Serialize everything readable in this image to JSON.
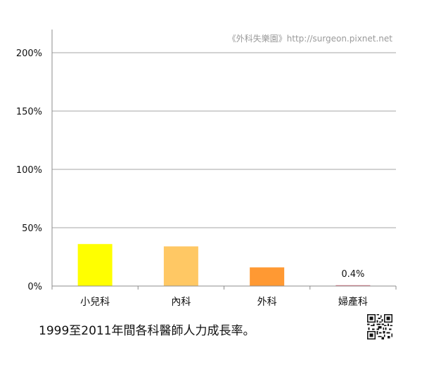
{
  "watermark": "《外科失樂園》http://surgeon.pixnet.net",
  "caption": "1999至2011年間各科醫師人力成長率。",
  "colors": {
    "gridline": "#a6a6a6",
    "axis": "#8c8c8c",
    "text": "#111111",
    "watermark": "#9a9a9a"
  },
  "chart_data": {
    "type": "bar",
    "categories": [
      "小兒科",
      "內科",
      "外科",
      "婦產科"
    ],
    "values": [
      36,
      34,
      16,
      0.4
    ],
    "bar_colors": [
      "#ffff00",
      "#ffc864",
      "#ff9933",
      "#e07080"
    ],
    "data_labels": [
      "",
      "",
      "",
      "0.4%"
    ],
    "y_ticks": [
      "0%",
      "50%",
      "100%",
      "150%",
      "200%"
    ],
    "y_tick_values": [
      0,
      50,
      100,
      150,
      200
    ],
    "ylim": [
      0,
      220
    ],
    "y_unit": "%",
    "grid": true,
    "legend": "none"
  }
}
